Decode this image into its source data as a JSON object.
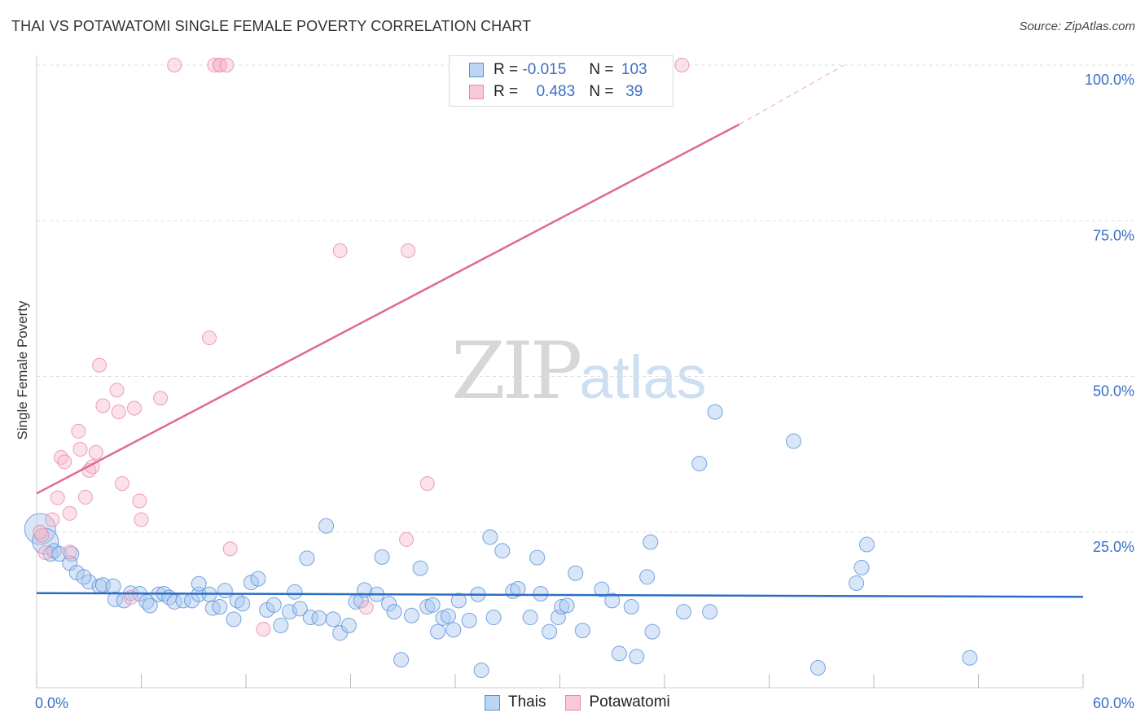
{
  "header": {
    "title": "THAI VS POTAWATOMI SINGLE FEMALE POVERTY CORRELATION CHART",
    "source": "Source: ZipAtlas.com"
  },
  "legend": {
    "thais": {
      "r_label": "R =",
      "r": "-0.015",
      "n_label": "N =",
      "n": "103",
      "name": "Thais"
    },
    "potawatomi": {
      "r_label": "R =",
      "r": "0.483",
      "n_label": "N =",
      "n": "39",
      "name": "Potawatomi"
    }
  },
  "watermark": {
    "zip": "ZIP",
    "atlas": "atlas"
  },
  "colors": {
    "thais_fill": "#a9c8f0",
    "thais_stroke": "#5b8fd6",
    "thais_line": "#2d6cc2",
    "pot_fill": "#f7bccd",
    "pot_stroke": "#e88aa6",
    "pot_line": "#e06a92",
    "grid": "#dddddd",
    "tick_text": "#3a6fc4"
  },
  "chart_data": {
    "type": "scatter",
    "title": "THAI VS POTAWATOMI SINGLE FEMALE POVERTY CORRELATION CHART",
    "xlabel": "",
    "ylabel": "Single Female Poverty",
    "xlim": [
      0,
      60
    ],
    "ylim": [
      0,
      100
    ],
    "x_tick_labels": [
      "0.0%",
      "60.0%"
    ],
    "y_ticks": [
      25,
      50,
      75,
      100
    ],
    "y_tick_labels": [
      "25.0%",
      "50.0%",
      "75.0%",
      "100.0%"
    ],
    "grid": true,
    "series": [
      {
        "name": "Thais",
        "trend": {
          "x0": 0,
          "y0": 15.2,
          "x1": 60,
          "y1": 14.6
        },
        "points": [
          [
            0.2,
            25.5,
            3
          ],
          [
            0.5,
            23.5,
            2
          ],
          [
            0.8,
            21.5,
            1
          ],
          [
            1.0,
            22,
            1
          ],
          [
            1.3,
            21.5,
            1
          ],
          [
            2.0,
            21.5,
            1
          ],
          [
            1.9,
            20,
            1
          ],
          [
            2.3,
            18.5,
            1
          ],
          [
            3.0,
            17,
            1
          ],
          [
            2.7,
            17.8,
            1
          ],
          [
            3.6,
            16.3,
            1
          ],
          [
            3.8,
            16.5,
            1
          ],
          [
            4.4,
            16.3,
            1
          ],
          [
            4.5,
            14.2,
            1
          ],
          [
            5.0,
            14.0,
            1
          ],
          [
            5.4,
            15.2,
            1
          ],
          [
            5.9,
            15.1,
            1
          ],
          [
            6.3,
            13.8,
            1
          ],
          [
            6.5,
            13.2,
            1
          ],
          [
            7.0,
            15.0,
            1
          ],
          [
            7.3,
            15.1,
            1
          ],
          [
            7.6,
            14.5,
            1
          ],
          [
            7.9,
            13.8,
            1
          ],
          [
            8.4,
            14.0,
            1
          ],
          [
            8.9,
            14.0,
            1
          ],
          [
            9.3,
            15.0,
            1
          ],
          [
            9.3,
            16.7,
            1
          ],
          [
            9.9,
            15.0,
            1
          ],
          [
            10.1,
            12.8,
            1
          ],
          [
            10.5,
            13.0,
            1
          ],
          [
            10.8,
            15.6,
            1
          ],
          [
            11.3,
            11.0,
            1
          ],
          [
            11.5,
            14.0,
            1
          ],
          [
            11.8,
            13.5,
            1
          ],
          [
            12.3,
            16.9,
            1
          ],
          [
            12.7,
            17.5,
            1
          ],
          [
            13.2,
            12.5,
            1
          ],
          [
            13.6,
            13.3,
            1
          ],
          [
            14.0,
            10.0,
            1
          ],
          [
            14.5,
            12.2,
            1
          ],
          [
            14.8,
            15.4,
            1
          ],
          [
            15.1,
            12.7,
            1
          ],
          [
            15.5,
            20.8,
            1
          ],
          [
            15.7,
            11.3,
            1
          ],
          [
            16.2,
            11.2,
            1
          ],
          [
            16.6,
            26.0,
            1
          ],
          [
            17.0,
            11.0,
            1
          ],
          [
            17.4,
            8.8,
            1
          ],
          [
            17.9,
            10.0,
            1
          ],
          [
            18.3,
            13.8,
            1
          ],
          [
            18.6,
            14.0,
            1
          ],
          [
            18.8,
            15.7,
            1
          ],
          [
            19.5,
            15.0,
            1
          ],
          [
            19.8,
            21.0,
            1
          ],
          [
            20.2,
            13.5,
            1
          ],
          [
            20.5,
            12.2,
            1
          ],
          [
            20.9,
            4.5,
            1
          ],
          [
            21.5,
            11.6,
            1
          ],
          [
            22.0,
            19.2,
            1
          ],
          [
            22.4,
            13.0,
            1
          ],
          [
            22.7,
            13.3,
            1
          ],
          [
            23.0,
            9.0,
            1
          ],
          [
            23.3,
            11.2,
            1
          ],
          [
            23.6,
            11.5,
            1
          ],
          [
            23.9,
            9.3,
            1
          ],
          [
            24.2,
            14.0,
            1
          ],
          [
            24.8,
            10.8,
            1
          ],
          [
            25.3,
            15.0,
            1
          ],
          [
            25.5,
            2.8,
            1
          ],
          [
            26.0,
            24.2,
            1
          ],
          [
            26.2,
            11.3,
            1
          ],
          [
            26.7,
            22.0,
            1
          ],
          [
            27.3,
            15.5,
            1
          ],
          [
            27.6,
            15.9,
            1
          ],
          [
            28.3,
            11.3,
            1
          ],
          [
            28.7,
            20.9,
            1
          ],
          [
            28.9,
            15.1,
            1
          ],
          [
            29.4,
            9.0,
            1
          ],
          [
            29.9,
            11.3,
            1
          ],
          [
            30.1,
            13.0,
            1
          ],
          [
            30.4,
            13.2,
            1
          ],
          [
            30.9,
            18.4,
            1
          ],
          [
            31.3,
            9.2,
            1
          ],
          [
            32.4,
            15.8,
            1
          ],
          [
            33.0,
            14.0,
            1
          ],
          [
            33.4,
            5.5,
            1
          ],
          [
            34.1,
            13.0,
            1
          ],
          [
            34.4,
            5.0,
            1
          ],
          [
            35.0,
            17.8,
            1
          ],
          [
            35.2,
            23.4,
            1
          ],
          [
            35.3,
            9.0,
            1
          ],
          [
            37.1,
            12.2,
            1
          ],
          [
            38.0,
            36.0,
            1
          ],
          [
            38.6,
            12.2,
            1
          ],
          [
            38.9,
            44.3,
            1
          ],
          [
            43.4,
            39.6,
            1
          ],
          [
            44.8,
            3.2,
            1
          ],
          [
            47.0,
            16.8,
            1
          ],
          [
            47.3,
            19.3,
            1
          ],
          [
            47.6,
            23.0,
            1
          ],
          [
            53.5,
            4.8,
            1
          ]
        ]
      },
      {
        "name": "Potawatomi",
        "trend": {
          "x0": 0,
          "y0": 31.2,
          "x1": 40.3,
          "y1": 90.5,
          "dash_to_x": 46.3,
          "dash_to_y": 100
        },
        "points": [
          [
            0.3,
            24.5
          ],
          [
            0.5,
            21.7
          ],
          [
            0.9,
            27.0
          ],
          [
            1.2,
            30.5
          ],
          [
            1.4,
            37.0
          ],
          [
            1.6,
            36.3
          ],
          [
            1.9,
            28.0
          ],
          [
            1.9,
            21.8
          ],
          [
            2.4,
            41.2
          ],
          [
            2.5,
            38.3
          ],
          [
            2.8,
            30.6
          ],
          [
            3.0,
            34.9
          ],
          [
            3.2,
            35.5
          ],
          [
            3.4,
            37.8
          ],
          [
            3.6,
            51.8
          ],
          [
            3.8,
            45.3
          ],
          [
            4.6,
            47.8
          ],
          [
            4.7,
            44.3
          ],
          [
            4.9,
            32.8
          ],
          [
            5.4,
            14.5
          ],
          [
            5.6,
            44.9
          ],
          [
            5.9,
            30.0
          ],
          [
            6.0,
            27.0
          ],
          [
            7.1,
            46.5
          ],
          [
            7.9,
            100.0
          ],
          [
            9.9,
            56.2
          ],
          [
            10.2,
            100.0
          ],
          [
            10.5,
            100.0
          ],
          [
            10.5,
            100.0
          ],
          [
            10.9,
            100.0
          ],
          [
            11.1,
            22.3
          ],
          [
            13.0,
            9.4
          ],
          [
            17.4,
            70.2
          ],
          [
            18.9,
            12.9
          ],
          [
            21.3,
            70.2
          ],
          [
            21.2,
            23.8
          ],
          [
            22.4,
            32.8
          ],
          [
            37.0,
            100.0
          ],
          [
            0.2,
            25.0
          ]
        ]
      }
    ]
  }
}
